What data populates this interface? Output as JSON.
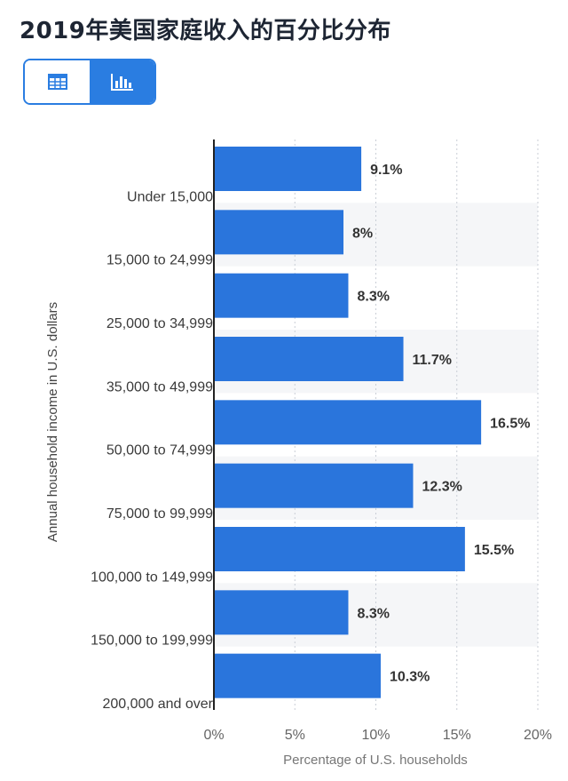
{
  "title": "2019年美国家庭收入的百分比分布",
  "view_toggle": {
    "table_icon": "table-icon",
    "chart_icon": "bar-chart-icon",
    "active": "chart"
  },
  "colors": {
    "bar": "#2a75dc",
    "accent": "#2a7de1",
    "grid": "#c9ced6",
    "label": "#3a3a3a",
    "value": "#333333",
    "band": "#f5f6f8"
  },
  "chart_data": {
    "type": "bar",
    "orientation": "horizontal",
    "title": "2019年美国家庭收入的百分比分布",
    "xlabel": "Percentage of U.S. households",
    "ylabel": "Annual household income in U.S. dollars",
    "categories": [
      "Under 15,000",
      "15,000 to 24,999",
      "25,000 to 34,999",
      "35,000 to 49,999",
      "50,000 to 74,999",
      "75,000 to 99,999",
      "100,000 to 149,999",
      "150,000 to 199,999",
      "200,000 and over"
    ],
    "values": [
      9.1,
      8,
      8.3,
      11.7,
      16.5,
      12.3,
      15.5,
      8.3,
      10.3
    ],
    "value_labels": [
      "9.1%",
      "8%",
      "8.3%",
      "11.7%",
      "16.5%",
      "12.3%",
      "15.5%",
      "8.3%",
      "10.3%"
    ],
    "xlim": [
      0,
      20
    ],
    "xticks": [
      0,
      5,
      10,
      15,
      20
    ],
    "xtick_labels": [
      "0%",
      "5%",
      "10%",
      "15%",
      "20%"
    ],
    "grid": "vertical dotted"
  }
}
